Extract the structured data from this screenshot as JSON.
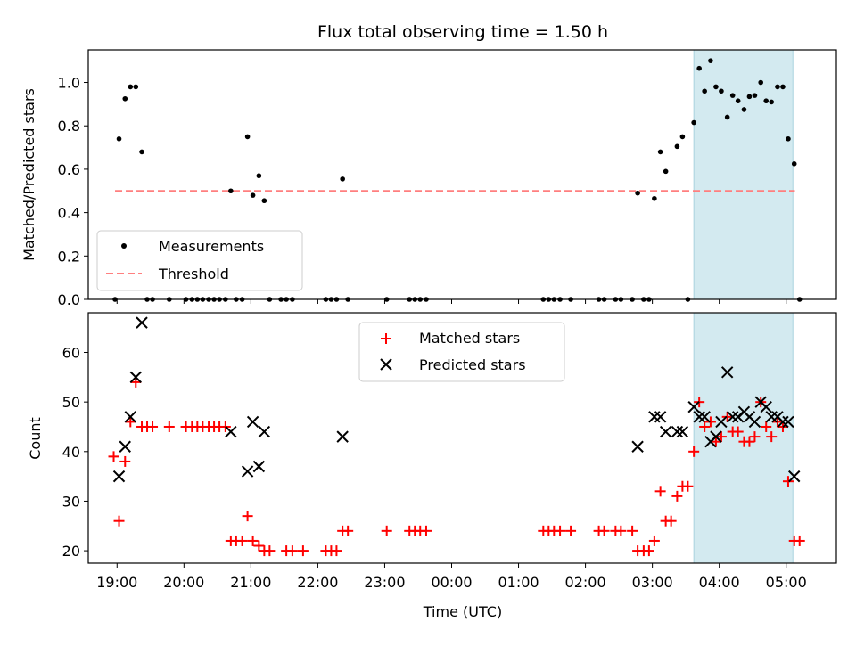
{
  "figure": {
    "title": "Flux total observing time = 1.50 h",
    "xlabel": "Time (UTC)",
    "x_tick_labels": [
      "19:00",
      "20:00",
      "21:00",
      "22:00",
      "23:00",
      "00:00",
      "01:00",
      "02:00",
      "03:00",
      "04:00",
      "05:00"
    ],
    "highlight": {
      "start_hour": 27.62,
      "end_hour": 29.1,
      "color": "#add8e6"
    }
  },
  "colors": {
    "measurement": "#000000",
    "threshold": "#ff7f7f",
    "matched": "#ff0000",
    "predicted": "#000000",
    "highlight": "#d3eaf0"
  },
  "chart_data": [
    {
      "type": "scatter",
      "panel": "top",
      "ylabel": "Matched/Predicted stars",
      "ylim": [
        0,
        1.15
      ],
      "xlim_hours": [
        18.57,
        29.75
      ],
      "y_ticks": [
        "0.0",
        "0.2",
        "0.4",
        "0.6",
        "0.8",
        "1.0"
      ],
      "y_tick_values": [
        0,
        0.2,
        0.4,
        0.6,
        0.8,
        1.0
      ],
      "legend": {
        "placement": "lower-left",
        "entries": [
          "Measurements",
          "Threshold"
        ]
      },
      "threshold": {
        "name": "Threshold",
        "value": 0.5,
        "x_range_hours": [
          18.97,
          29.13
        ]
      },
      "series": [
        {
          "name": "Measurements",
          "marker": "dot",
          "points": [
            [
              18.97,
              0
            ],
            [
              19.03,
              0.74
            ],
            [
              19.12,
              0.925
            ],
            [
              19.2,
              0.98
            ],
            [
              19.28,
              0.98
            ],
            [
              19.37,
              0.68
            ],
            [
              19.45,
              0
            ],
            [
              19.53,
              0
            ],
            [
              19.78,
              0
            ],
            [
              20.03,
              0
            ],
            [
              20.12,
              0
            ],
            [
              20.2,
              0
            ],
            [
              20.28,
              0
            ],
            [
              20.37,
              0
            ],
            [
              20.45,
              0
            ],
            [
              20.53,
              0
            ],
            [
              20.62,
              0
            ],
            [
              20.7,
              0.5
            ],
            [
              20.78,
              0
            ],
            [
              20.87,
              0
            ],
            [
              20.95,
              0.75
            ],
            [
              21.03,
              0.48
            ],
            [
              21.12,
              0.57
            ],
            [
              21.2,
              0.455
            ],
            [
              21.28,
              0
            ],
            [
              21.45,
              0
            ],
            [
              21.53,
              0
            ],
            [
              21.62,
              0
            ],
            [
              22.12,
              0
            ],
            [
              22.2,
              0
            ],
            [
              22.28,
              0
            ],
            [
              22.37,
              0.555
            ],
            [
              22.45,
              0
            ],
            [
              23.03,
              0
            ],
            [
              23.37,
              0
            ],
            [
              23.45,
              0
            ],
            [
              23.53,
              0
            ],
            [
              23.62,
              0
            ],
            [
              25.37,
              0
            ],
            [
              25.45,
              0
            ],
            [
              25.53,
              0
            ],
            [
              25.62,
              0
            ],
            [
              25.78,
              0
            ],
            [
              26.2,
              0
            ],
            [
              26.28,
              0
            ],
            [
              26.45,
              0
            ],
            [
              26.53,
              0
            ],
            [
              26.7,
              0
            ],
            [
              26.78,
              0.49
            ],
            [
              26.87,
              0
            ],
            [
              26.95,
              0
            ],
            [
              27.03,
              0.465
            ],
            [
              27.12,
              0.68
            ],
            [
              27.2,
              0.59
            ],
            [
              27.37,
              0.705
            ],
            [
              27.45,
              0.75
            ],
            [
              27.53,
              0
            ],
            [
              27.62,
              0.815
            ],
            [
              27.7,
              1.065
            ],
            [
              27.78,
              0.96
            ],
            [
              27.87,
              1.1
            ],
            [
              27.95,
              0.98
            ],
            [
              28.03,
              0.96
            ],
            [
              28.12,
              0.84
            ],
            [
              28.2,
              0.94
            ],
            [
              28.28,
              0.915
            ],
            [
              28.37,
              0.875
            ],
            [
              28.45,
              0.935
            ],
            [
              28.53,
              0.94
            ],
            [
              28.62,
              1.0
            ],
            [
              28.7,
              0.915
            ],
            [
              28.78,
              0.91
            ],
            [
              28.87,
              0.98
            ],
            [
              28.95,
              0.98
            ],
            [
              29.03,
              0.74
            ],
            [
              29.12,
              0.625
            ],
            [
              29.2,
              0
            ]
          ]
        }
      ]
    },
    {
      "type": "scatter",
      "panel": "bottom",
      "ylabel": "Count",
      "ylim": [
        17.5,
        68
      ],
      "xlim_hours": [
        18.57,
        29.75
      ],
      "y_ticks": [
        "20",
        "30",
        "40",
        "50",
        "60"
      ],
      "y_tick_values": [
        20,
        30,
        40,
        50,
        60
      ],
      "legend": {
        "placement": "upper-center",
        "entries": [
          "Matched stars",
          "Predicted stars"
        ]
      },
      "series": [
        {
          "name": "Matched stars",
          "marker": "plus",
          "points": [
            [
              18.95,
              39
            ],
            [
              19.03,
              26
            ],
            [
              19.12,
              38
            ],
            [
              19.2,
              46
            ],
            [
              19.28,
              54
            ],
            [
              19.37,
              45
            ],
            [
              19.45,
              45
            ],
            [
              19.53,
              45
            ],
            [
              19.78,
              45
            ],
            [
              20.03,
              45
            ],
            [
              20.12,
              45
            ],
            [
              20.2,
              45
            ],
            [
              20.28,
              45
            ],
            [
              20.37,
              45
            ],
            [
              20.45,
              45
            ],
            [
              20.53,
              45
            ],
            [
              20.62,
              45
            ],
            [
              20.7,
              22
            ],
            [
              20.78,
              22
            ],
            [
              20.87,
              22
            ],
            [
              20.95,
              27
            ],
            [
              21.03,
              22
            ],
            [
              21.12,
              21
            ],
            [
              21.2,
              20
            ],
            [
              21.28,
              20
            ],
            [
              21.53,
              20
            ],
            [
              21.62,
              20
            ],
            [
              21.78,
              20
            ],
            [
              22.12,
              20
            ],
            [
              22.2,
              20
            ],
            [
              22.28,
              20
            ],
            [
              22.37,
              24
            ],
            [
              22.45,
              24
            ],
            [
              23.03,
              24
            ],
            [
              23.37,
              24
            ],
            [
              23.45,
              24
            ],
            [
              23.53,
              24
            ],
            [
              23.62,
              24
            ],
            [
              25.37,
              24
            ],
            [
              25.45,
              24
            ],
            [
              25.53,
              24
            ],
            [
              25.62,
              24
            ],
            [
              25.78,
              24
            ],
            [
              26.2,
              24
            ],
            [
              26.28,
              24
            ],
            [
              26.45,
              24
            ],
            [
              26.53,
              24
            ],
            [
              26.7,
              24
            ],
            [
              26.78,
              20
            ],
            [
              26.87,
              20
            ],
            [
              26.95,
              20
            ],
            [
              27.03,
              22
            ],
            [
              27.12,
              32
            ],
            [
              27.2,
              26
            ],
            [
              27.28,
              26
            ],
            [
              27.37,
              31
            ],
            [
              27.45,
              33
            ],
            [
              27.53,
              33
            ],
            [
              27.62,
              40
            ],
            [
              27.7,
              50
            ],
            [
              27.78,
              45
            ],
            [
              27.87,
              46
            ],
            [
              27.95,
              42
            ],
            [
              28.03,
              43
            ],
            [
              28.12,
              47
            ],
            [
              28.2,
              44
            ],
            [
              28.28,
              44
            ],
            [
              28.37,
              42
            ],
            [
              28.45,
              42
            ],
            [
              28.53,
              43
            ],
            [
              28.62,
              50
            ],
            [
              28.7,
              45
            ],
            [
              28.78,
              43
            ],
            [
              28.87,
              46
            ],
            [
              28.95,
              45
            ],
            [
              29.03,
              34
            ],
            [
              29.12,
              22
            ],
            [
              29.2,
              22
            ]
          ]
        },
        {
          "name": "Predicted stars",
          "marker": "x",
          "points": [
            [
              19.03,
              35
            ],
            [
              19.12,
              41
            ],
            [
              19.2,
              47
            ],
            [
              19.28,
              55
            ],
            [
              19.37,
              66
            ],
            [
              20.7,
              44
            ],
            [
              20.95,
              36
            ],
            [
              21.03,
              46
            ],
            [
              21.12,
              37
            ],
            [
              21.2,
              44
            ],
            [
              22.37,
              43
            ],
            [
              26.78,
              41
            ],
            [
              27.03,
              47
            ],
            [
              27.12,
              47
            ],
            [
              27.2,
              44
            ],
            [
              27.37,
              44
            ],
            [
              27.45,
              44
            ],
            [
              27.62,
              49
            ],
            [
              27.7,
              47
            ],
            [
              27.78,
              47
            ],
            [
              27.87,
              42
            ],
            [
              27.95,
              43
            ],
            [
              28.03,
              46
            ],
            [
              28.12,
              56
            ],
            [
              28.2,
              47
            ],
            [
              28.28,
              47
            ],
            [
              28.37,
              48
            ],
            [
              28.45,
              47
            ],
            [
              28.53,
              46
            ],
            [
              28.62,
              50
            ],
            [
              28.7,
              49
            ],
            [
              28.78,
              47
            ],
            [
              28.87,
              47
            ],
            [
              28.95,
              46
            ],
            [
              29.03,
              46
            ],
            [
              29.12,
              35
            ]
          ]
        }
      ]
    }
  ]
}
